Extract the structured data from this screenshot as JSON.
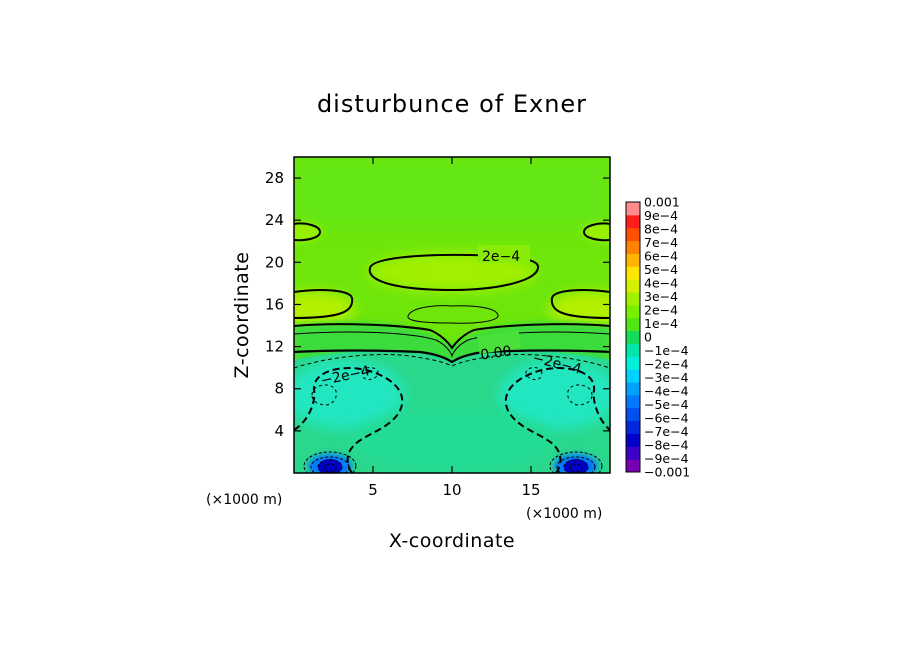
{
  "chart_data": {
    "type": "heatmap",
    "title": "disturbunce of Exner",
    "xlabel": "X-coordinate",
    "ylabel": "Z-coordinate",
    "x_unit": "(×1000 m)",
    "y_unit": "(×1000 m)",
    "xlim": [
      0,
      20
    ],
    "ylim": [
      0,
      30
    ],
    "x_ticks": [
      5,
      10,
      15
    ],
    "y_ticks": [
      4,
      8,
      12,
      16,
      20,
      24,
      28
    ],
    "colorbar": {
      "levels": [
        -0.001,
        -0.0009,
        -0.0008,
        -0.0007,
        -0.0006,
        -0.0005,
        -0.0004,
        -0.0003,
        -0.0002,
        -0.0001,
        0,
        0.0001,
        0.0002,
        0.0003,
        0.0004,
        0.0005,
        0.0006,
        0.0007,
        0.0008,
        0.0009,
        0.001
      ],
      "labels": [
        "−0.001",
        "−9e−4",
        "−8e−4",
        "−7e−4",
        "−6e−4",
        "−5e−4",
        "−4e−4",
        "−3e−4",
        "−2e−4",
        "−1e−4",
        "0",
        "1e−4",
        "2e−4",
        "3e−4",
        "4e−4",
        "5e−4",
        "6e−4",
        "7e−4",
        "8e−4",
        "9e−4",
        "0.001"
      ],
      "colors": [
        "#7800b4",
        "#3c00c8",
        "#0000c8",
        "#0028dc",
        "#0050f0",
        "#0078ff",
        "#00a0ff",
        "#00d2ff",
        "#00f0dc",
        "#00e6aa",
        "#14dc5a",
        "#50e614",
        "#78f000",
        "#a0f000",
        "#d2f000",
        "#ffe600",
        "#ffb400",
        "#ff8200",
        "#ff5000",
        "#ff1e1e",
        "#ff8c8c"
      ]
    },
    "contour_labels": [
      "2e−4",
      "0.00",
      "−2e−4",
      "−2e−4"
    ],
    "regions": [
      {
        "kind": "background",
        "value": 0.00025
      },
      {
        "kind": "band-top",
        "value": 0.0001,
        "x": [
          0,
          20
        ],
        "z": [
          24,
          28.5
        ]
      },
      {
        "kind": "high",
        "value": 0.00032,
        "x": [
          5,
          15.5
        ],
        "z": [
          17.5,
          20.5
        ]
      },
      {
        "kind": "high",
        "value": 0.00034,
        "x": [
          0,
          3.8
        ],
        "z": [
          14,
          16.8
        ]
      },
      {
        "kind": "high",
        "value": 0.00034,
        "x": [
          16.2,
          20
        ],
        "z": [
          14,
          16.8
        ]
      },
      {
        "kind": "high",
        "value": 0.0003,
        "x": [
          0,
          1.8
        ],
        "z": [
          21.5,
          23
        ]
      },
      {
        "kind": "high",
        "value": 0.0003,
        "x": [
          18.2,
          20
        ],
        "z": [
          21.5,
          23
        ]
      },
      {
        "kind": "mid",
        "value": 0.00015,
        "x": [
          0,
          20
        ],
        "z": [
          10,
          14
        ]
      },
      {
        "kind": "low",
        "value": -0.0001,
        "x": [
          0,
          20
        ],
        "z": [
          0,
          10.5
        ]
      },
      {
        "kind": "low",
        "value": -0.0003,
        "x": [
          1,
          5.5
        ],
        "z": [
          6,
          10
        ]
      },
      {
        "kind": "low",
        "value": -0.0003,
        "x": [
          14.5,
          19
        ],
        "z": [
          6,
          10
        ]
      },
      {
        "kind": "min",
        "value": -0.0009,
        "x": [
          2.3
        ],
        "z": [
          0.8
        ]
      },
      {
        "kind": "min",
        "value": -0.0009,
        "x": [
          17.7
        ],
        "z": [
          0.8
        ]
      }
    ]
  }
}
